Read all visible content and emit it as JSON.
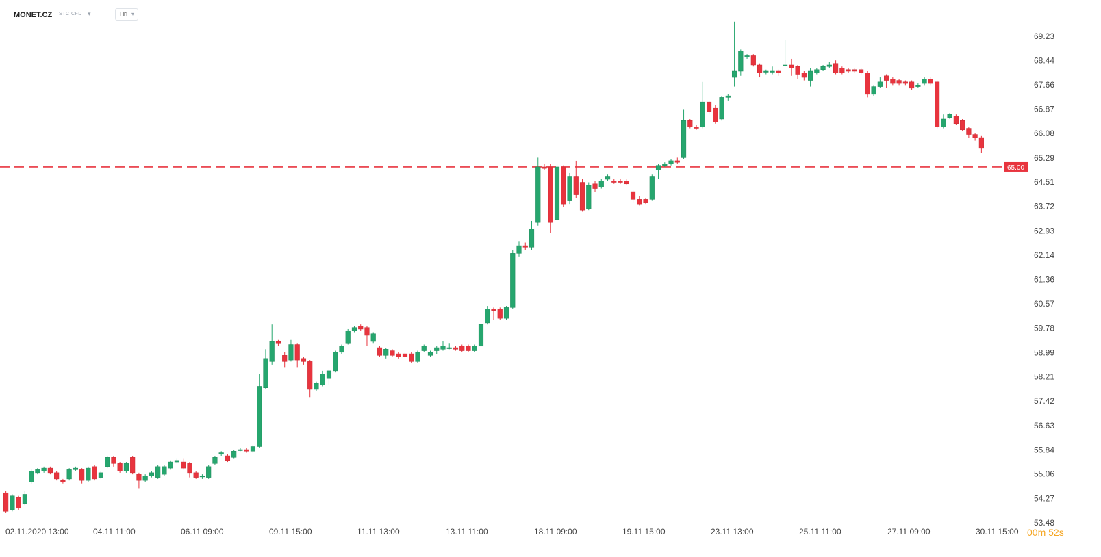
{
  "header": {
    "symbol": "MONET.CZ",
    "instrument_type": "STC CFD",
    "interval": "H1"
  },
  "timer": {
    "minutes": "00",
    "minutes_unit": "m",
    "seconds": "52",
    "seconds_unit": "s"
  },
  "colors": {
    "up": "#26a66e",
    "down": "#e8343e",
    "level_line": "#e8343e",
    "axis_text": "#444444"
  },
  "chart_data": {
    "type": "candlestick",
    "y_axis_position": "right",
    "ylim": [
      53.48,
      69.8
    ],
    "y_ticks": [
      "69.23",
      "68.44",
      "67.66",
      "66.87",
      "66.08",
      "65.29",
      "64.51",
      "63.72",
      "62.93",
      "62.14",
      "61.36",
      "60.57",
      "59.78",
      "58.99",
      "58.21",
      "57.42",
      "56.63",
      "55.84",
      "55.06",
      "54.27",
      "53.48"
    ],
    "x_ticks": [
      "02.11.2020  13:00",
      "04.11  11:00",
      "06.11  09:00",
      "09.11  15:00",
      "11.11  13:00",
      "13.11  11:00",
      "18.11  09:00",
      "19.11  15:00",
      "23.11  13:00",
      "25.11  11:00",
      "27.11  09:00",
      "30.11  15:00"
    ],
    "price_line": {
      "value": 65.0,
      "label": "65.00",
      "style": "dashed"
    },
    "candles": [
      [
        54.45,
        53.85,
        54.5,
        53.8
      ],
      [
        53.9,
        54.35,
        54.4,
        53.85
      ],
      [
        54.3,
        53.95,
        54.35,
        53.9
      ],
      [
        54.1,
        54.4,
        54.5,
        54.05
      ],
      [
        54.8,
        55.15,
        55.2,
        54.75
      ],
      [
        55.1,
        55.2,
        55.25,
        55.05
      ],
      [
        55.15,
        55.25,
        55.3,
        55.1
      ],
      [
        55.25,
        55.1,
        55.3,
        55.05
      ],
      [
        55.1,
        54.9,
        55.15,
        54.85
      ],
      [
        54.85,
        54.8,
        54.9,
        54.75
      ],
      [
        54.9,
        55.2,
        55.25,
        54.85
      ],
      [
        55.2,
        55.25,
        55.3,
        55.15
      ],
      [
        55.2,
        54.85,
        55.25,
        54.75
      ],
      [
        54.85,
        55.25,
        55.3,
        54.8
      ],
      [
        55.3,
        54.9,
        55.35,
        54.85
      ],
      [
        54.95,
        55.1,
        55.15,
        54.9
      ],
      [
        55.3,
        55.6,
        55.65,
        55.25
      ],
      [
        55.6,
        55.4,
        55.65,
        55.3
      ],
      [
        55.4,
        55.15,
        55.45,
        55.1
      ],
      [
        55.15,
        55.4,
        55.45,
        55.1
      ],
      [
        55.6,
        55.1,
        55.65,
        55.05
      ],
      [
        55.05,
        54.85,
        55.1,
        54.6
      ],
      [
        54.85,
        55.0,
        55.05,
        54.8
      ],
      [
        55.0,
        55.1,
        55.15,
        54.95
      ],
      [
        54.95,
        55.3,
        55.35,
        54.9
      ],
      [
        55.05,
        55.3,
        55.35,
        55.0
      ],
      [
        55.25,
        55.45,
        55.5,
        55.2
      ],
      [
        55.45,
        55.5,
        55.55,
        55.4
      ],
      [
        55.45,
        55.25,
        55.55,
        55.2
      ],
      [
        55.4,
        55.1,
        55.45,
        54.95
      ],
      [
        55.1,
        54.95,
        55.15,
        54.9
      ],
      [
        55.0,
        55.0,
        55.05,
        54.9
      ],
      [
        54.95,
        55.3,
        55.35,
        54.9
      ],
      [
        55.4,
        55.6,
        55.65,
        55.35
      ],
      [
        55.7,
        55.75,
        55.8,
        55.65
      ],
      [
        55.65,
        55.5,
        55.7,
        55.45
      ],
      [
        55.6,
        55.8,
        55.85,
        55.55
      ],
      [
        55.85,
        55.85,
        55.9,
        55.8
      ],
      [
        55.85,
        55.8,
        55.9,
        55.75
      ],
      [
        55.8,
        55.95,
        56.0,
        55.75
      ],
      [
        55.95,
        57.9,
        58.3,
        55.9
      ],
      [
        57.85,
        58.8,
        59.1,
        57.8
      ],
      [
        58.7,
        59.35,
        59.9,
        58.6
      ],
      [
        59.35,
        59.3,
        59.4,
        59.2
      ],
      [
        58.9,
        58.7,
        59.0,
        58.5
      ],
      [
        58.75,
        59.25,
        59.4,
        58.7
      ],
      [
        59.25,
        58.75,
        59.3,
        58.5
      ],
      [
        58.8,
        58.7,
        58.85,
        58.6
      ],
      [
        58.7,
        57.8,
        58.75,
        57.55
      ],
      [
        57.8,
        58.0,
        58.05,
        57.75
      ],
      [
        57.95,
        58.3,
        58.4,
        57.9
      ],
      [
        58.15,
        58.4,
        58.45,
        57.95
      ],
      [
        58.4,
        59.0,
        59.05,
        58.35
      ],
      [
        59.0,
        59.2,
        59.25,
        58.95
      ],
      [
        59.3,
        59.7,
        59.75,
        59.25
      ],
      [
        59.7,
        59.8,
        59.85,
        59.65
      ],
      [
        59.85,
        59.75,
        59.9,
        59.7
      ],
      [
        59.8,
        59.55,
        59.85,
        59.2
      ],
      [
        59.35,
        59.6,
        59.65,
        59.3
      ],
      [
        59.15,
        58.9,
        59.2,
        58.85
      ],
      [
        58.9,
        59.1,
        59.15,
        58.8
      ],
      [
        59.05,
        58.9,
        59.1,
        58.85
      ],
      [
        58.95,
        58.85,
        59.0,
        58.8
      ],
      [
        58.95,
        58.85,
        59.0,
        58.8
      ],
      [
        58.95,
        58.7,
        59.0,
        58.65
      ],
      [
        58.7,
        59.0,
        59.05,
        58.65
      ],
      [
        59.05,
        59.2,
        59.25,
        59.0
      ],
      [
        58.9,
        59.0,
        59.05,
        58.85
      ],
      [
        59.05,
        59.15,
        59.2,
        58.95
      ],
      [
        59.1,
        59.2,
        59.35,
        59.05
      ],
      [
        59.15,
        59.15,
        59.3,
        59.1
      ],
      [
        59.15,
        59.1,
        59.2,
        59.05
      ],
      [
        59.2,
        59.05,
        59.25,
        59.0
      ],
      [
        59.2,
        59.05,
        59.25,
        59.0
      ],
      [
        59.05,
        59.2,
        59.25,
        59.0
      ],
      [
        59.2,
        59.9,
        59.95,
        59.1
      ],
      [
        59.95,
        60.4,
        60.5,
        59.9
      ],
      [
        60.4,
        60.35,
        60.45,
        60.05
      ],
      [
        60.4,
        60.1,
        60.45,
        60.05
      ],
      [
        60.1,
        60.45,
        60.5,
        60.05
      ],
      [
        60.45,
        62.2,
        62.3,
        60.4
      ],
      [
        62.2,
        62.45,
        62.6,
        62.1
      ],
      [
        62.45,
        62.4,
        62.55,
        62.3
      ],
      [
        62.4,
        63.0,
        63.25,
        62.3
      ],
      [
        63.2,
        65.0,
        65.3,
        63.1
      ],
      [
        65.0,
        64.95,
        65.1,
        64.9
      ],
      [
        65.0,
        63.2,
        65.1,
        62.85
      ],
      [
        63.3,
        65.0,
        65.1,
        63.25
      ],
      [
        65.0,
        63.8,
        65.05,
        63.7
      ],
      [
        63.9,
        64.7,
        64.8,
        63.8
      ],
      [
        64.7,
        64.1,
        65.2,
        64.0
      ],
      [
        64.5,
        63.6,
        64.6,
        63.55
      ],
      [
        63.65,
        64.4,
        64.5,
        63.6
      ],
      [
        64.45,
        64.3,
        64.55,
        64.2
      ],
      [
        64.35,
        64.55,
        64.6,
        64.3
      ],
      [
        64.6,
        64.7,
        64.75,
        64.55
      ],
      [
        64.55,
        64.5,
        64.6,
        64.45
      ],
      [
        64.55,
        64.5,
        64.6,
        64.45
      ],
      [
        64.55,
        64.45,
        64.6,
        64.4
      ],
      [
        64.2,
        63.95,
        64.25,
        63.85
      ],
      [
        63.95,
        63.8,
        64.05,
        63.75
      ],
      [
        63.95,
        63.85,
        64.0,
        63.8
      ],
      [
        63.95,
        64.7,
        64.75,
        63.9
      ],
      [
        64.9,
        65.05,
        65.1,
        64.6
      ],
      [
        65.05,
        65.1,
        65.15,
        65.0
      ],
      [
        65.1,
        65.2,
        65.25,
        65.05
      ],
      [
        65.2,
        65.15,
        65.3,
        65.1
      ],
      [
        65.3,
        66.5,
        66.85,
        65.25
      ],
      [
        66.5,
        66.3,
        66.55,
        66.25
      ],
      [
        66.3,
        66.25,
        66.35,
        66.2
      ],
      [
        66.3,
        67.1,
        67.75,
        66.25
      ],
      [
        67.1,
        66.8,
        67.15,
        66.7
      ],
      [
        66.9,
        66.45,
        67.0,
        66.4
      ],
      [
        66.55,
        67.25,
        67.3,
        66.5
      ],
      [
        67.25,
        67.3,
        67.35,
        67.15
      ],
      [
        67.9,
        68.1,
        69.7,
        67.6
      ],
      [
        68.1,
        68.75,
        68.8,
        67.95
      ],
      [
        68.55,
        68.6,
        68.65,
        68.5
      ],
      [
        68.6,
        68.3,
        68.65,
        68.25
      ],
      [
        68.3,
        68.05,
        68.35,
        67.9
      ],
      [
        68.1,
        68.1,
        68.15,
        68.0
      ],
      [
        68.1,
        68.1,
        68.25,
        68.0
      ],
      [
        68.1,
        68.05,
        68.15,
        67.95
      ],
      [
        68.3,
        68.3,
        69.1,
        68.25
      ],
      [
        68.3,
        68.2,
        68.5,
        67.95
      ],
      [
        68.25,
        68.0,
        68.3,
        67.85
      ],
      [
        68.05,
        67.9,
        68.1,
        67.8
      ],
      [
        67.8,
        68.1,
        68.2,
        67.6
      ],
      [
        68.05,
        68.15,
        68.2,
        68.0
      ],
      [
        68.15,
        68.25,
        68.3,
        68.1
      ],
      [
        68.25,
        68.3,
        68.4,
        68.2
      ],
      [
        68.35,
        68.05,
        68.45,
        68.0
      ],
      [
        68.2,
        68.05,
        68.25,
        68.0
      ],
      [
        68.15,
        68.1,
        68.2,
        68.05
      ],
      [
        68.15,
        68.1,
        68.2,
        68.05
      ],
      [
        68.15,
        68.05,
        68.2,
        68.0
      ],
      [
        68.05,
        67.35,
        68.1,
        67.25
      ],
      [
        67.35,
        67.6,
        67.65,
        67.3
      ],
      [
        67.6,
        67.75,
        67.9,
        67.55
      ],
      [
        67.95,
        67.8,
        68.0,
        67.55
      ],
      [
        67.85,
        67.7,
        67.9,
        67.65
      ],
      [
        67.8,
        67.7,
        67.85,
        67.65
      ],
      [
        67.75,
        67.7,
        67.8,
        67.65
      ],
      [
        67.75,
        67.55,
        67.8,
        67.5
      ],
      [
        67.6,
        67.65,
        67.7,
        67.55
      ],
      [
        67.7,
        67.85,
        67.9,
        67.65
      ],
      [
        67.85,
        67.7,
        67.9,
        67.65
      ],
      [
        67.75,
        66.3,
        67.8,
        66.25
      ],
      [
        66.3,
        66.55,
        66.7,
        66.25
      ],
      [
        66.6,
        66.7,
        66.75,
        66.55
      ],
      [
        66.65,
        66.4,
        66.7,
        66.35
      ],
      [
        66.5,
        66.2,
        66.55,
        66.15
      ],
      [
        66.25,
        66.05,
        66.3,
        65.95
      ],
      [
        66.05,
        65.95,
        66.1,
        65.85
      ],
      [
        65.95,
        65.6,
        66.0,
        65.45
      ]
    ]
  }
}
